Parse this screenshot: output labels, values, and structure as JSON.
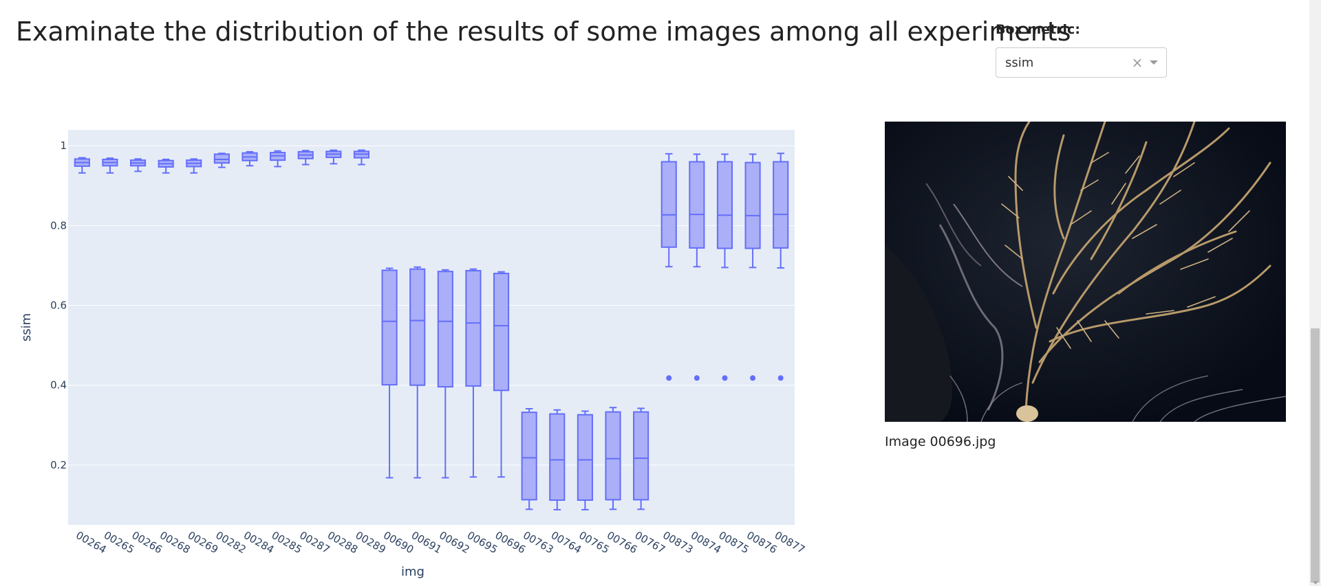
{
  "header": {
    "title": "Examinate the distribution of the results of some images among all experiments"
  },
  "controls": {
    "metric_label": "Box metric:",
    "metric_value": "ssim",
    "clear_glyph": "×"
  },
  "image_panel": {
    "caption": "Image 00696.jpg"
  },
  "colors": {
    "plot_bg": "#e5ecf6",
    "box_fill": "#abaff7",
    "box_line": "#636efa",
    "grid": "#ffffff",
    "tick_text": "#2a3f5f"
  },
  "chart_data": {
    "type": "box",
    "xlabel": "img",
    "ylabel": "ssim",
    "ylim": [
      0.05,
      1.04
    ],
    "yticks": [
      0.2,
      0.4,
      0.6,
      0.8,
      1
    ],
    "ytick_labels": [
      "0.2",
      "0.4",
      "0.6",
      "0.8",
      "1"
    ],
    "grid": true,
    "categories": [
      "00264",
      "00265",
      "00266",
      "00268",
      "00269",
      "00282",
      "00284",
      "00285",
      "00287",
      "00288",
      "00289",
      "00690",
      "00691",
      "00692",
      "00695",
      "00696",
      "00763",
      "00764",
      "00765",
      "00766",
      "00767",
      "00873",
      "00874",
      "00875",
      "00876",
      "00877"
    ],
    "boxes": [
      {
        "min": 0.932,
        "q1": 0.949,
        "median": 0.958,
        "q3": 0.967,
        "max": 0.97
      },
      {
        "min": 0.932,
        "q1": 0.95,
        "median": 0.958,
        "q3": 0.966,
        "max": 0.969
      },
      {
        "min": 0.936,
        "q1": 0.95,
        "median": 0.957,
        "q3": 0.964,
        "max": 0.967
      },
      {
        "min": 0.932,
        "q1": 0.947,
        "median": 0.955,
        "q3": 0.963,
        "max": 0.966
      },
      {
        "min": 0.932,
        "q1": 0.948,
        "median": 0.956,
        "q3": 0.964,
        "max": 0.967
      },
      {
        "min": 0.946,
        "q1": 0.957,
        "median": 0.966,
        "q3": 0.979,
        "max": 0.981
      },
      {
        "min": 0.95,
        "q1": 0.963,
        "median": 0.972,
        "q3": 0.982,
        "max": 0.985
      },
      {
        "min": 0.948,
        "q1": 0.964,
        "median": 0.975,
        "q3": 0.983,
        "max": 0.987
      },
      {
        "min": 0.953,
        "q1": 0.968,
        "median": 0.977,
        "q3": 0.985,
        "max": 0.988
      },
      {
        "min": 0.955,
        "q1": 0.971,
        "median": 0.979,
        "q3": 0.986,
        "max": 0.989
      },
      {
        "min": 0.953,
        "q1": 0.97,
        "median": 0.979,
        "q3": 0.986,
        "max": 0.989
      },
      {
        "min": 0.168,
        "q1": 0.401,
        "median": 0.56,
        "q3": 0.688,
        "max": 0.693
      },
      {
        "min": 0.168,
        "q1": 0.4,
        "median": 0.562,
        "q3": 0.691,
        "max": 0.696
      },
      {
        "min": 0.168,
        "q1": 0.396,
        "median": 0.56,
        "q3": 0.685,
        "max": 0.689
      },
      {
        "min": 0.17,
        "q1": 0.398,
        "median": 0.556,
        "q3": 0.687,
        "max": 0.691
      },
      {
        "min": 0.17,
        "q1": 0.387,
        "median": 0.549,
        "q3": 0.68,
        "max": 0.684
      },
      {
        "min": 0.089,
        "q1": 0.113,
        "median": 0.218,
        "q3": 0.332,
        "max": 0.341
      },
      {
        "min": 0.088,
        "q1": 0.112,
        "median": 0.213,
        "q3": 0.328,
        "max": 0.338
      },
      {
        "min": 0.088,
        "q1": 0.112,
        "median": 0.213,
        "q3": 0.326,
        "max": 0.335
      },
      {
        "min": 0.089,
        "q1": 0.113,
        "median": 0.216,
        "q3": 0.333,
        "max": 0.344
      },
      {
        "min": 0.089,
        "q1": 0.113,
        "median": 0.217,
        "q3": 0.333,
        "max": 0.342
      },
      {
        "min": 0.697,
        "q1": 0.746,
        "median": 0.827,
        "q3": 0.96,
        "max": 0.98,
        "outliers": [
          0.418
        ]
      },
      {
        "min": 0.697,
        "q1": 0.744,
        "median": 0.828,
        "q3": 0.96,
        "max": 0.979,
        "outliers": [
          0.418
        ]
      },
      {
        "min": 0.695,
        "q1": 0.743,
        "median": 0.826,
        "q3": 0.96,
        "max": 0.979,
        "outliers": [
          0.418
        ]
      },
      {
        "min": 0.695,
        "q1": 0.743,
        "median": 0.825,
        "q3": 0.958,
        "max": 0.979,
        "outliers": [
          0.418
        ]
      },
      {
        "min": 0.694,
        "q1": 0.744,
        "median": 0.828,
        "q3": 0.96,
        "max": 0.981,
        "outliers": [
          0.418
        ]
      }
    ]
  }
}
